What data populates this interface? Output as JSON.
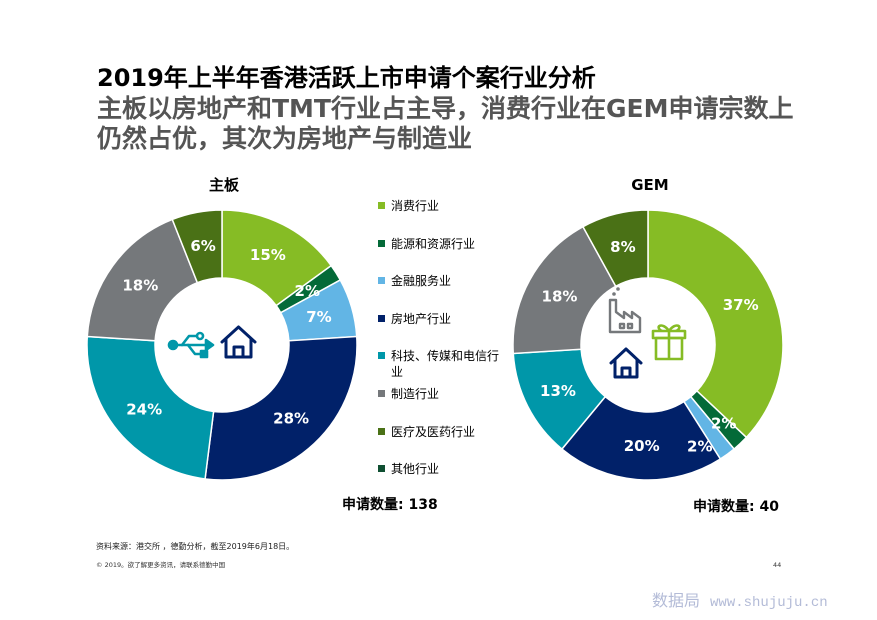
{
  "slide": {
    "title": "2019年上半年香港活跃上市申请个案行业分析",
    "subtitle_lines": [
      "主板以房地产和TMT行业占主导，消费行业在GEM申请宗数上",
      "仍然占优，其次为房地产与制造业"
    ],
    "source_note": "资料来源：港交所 ，德勤分析，截至2019年6月18日。",
    "copyright": "© 2019。欲了解更多资讯，请联系德勤中国",
    "page_number": "44"
  },
  "watermark": {
    "name": "数据局",
    "url": "www.shujuju.cn",
    "color": "#B3BBD7"
  },
  "legend": [
    {
      "label": "消费行业",
      "color": "#86BC25"
    },
    {
      "label": "能源和资源行业",
      "color": "#046A38"
    },
    {
      "label": "金融服务业",
      "color": "#62B5E5"
    },
    {
      "label": "房地产行业",
      "color": "#012169"
    },
    {
      "label": "科技、传媒和电信行业",
      "color": "#0097A9"
    },
    {
      "label": "制造行业",
      "color": "#75787B"
    },
    {
      "label": "医疗及医药行业",
      "color": "#4A7116"
    },
    {
      "label": "其他行业",
      "color": "#0F4F32"
    }
  ],
  "icons": {
    "main_board_center": [
      "usb-icon",
      "house-icon"
    ],
    "gem_center": [
      "factory-icon",
      "gift-icon",
      "house-icon"
    ]
  },
  "chart_data": [
    {
      "type": "pie",
      "style": "donut",
      "title": "主板",
      "categories": [
        "消费行业",
        "能源和资源行业",
        "金融服务业",
        "房地产行业",
        "科技、传媒和电信行业",
        "制造行业",
        "医疗及医药行业",
        "其他行业"
      ],
      "values": [
        15,
        2,
        7,
        28,
        24,
        18,
        6,
        0
      ],
      "unit": "%",
      "total_note": "申请数量: 138"
    },
    {
      "type": "pie",
      "style": "donut",
      "title": "GEM",
      "categories": [
        "消费行业",
        "能源和资源行业",
        "金融服务业",
        "房地产行业",
        "科技、传媒和电信行业",
        "制造行业",
        "医疗及医药行业",
        "其他行业"
      ],
      "values": [
        37,
        2,
        2,
        20,
        13,
        18,
        8,
        0
      ],
      "unit": "%",
      "total_note": "申请数量: 40"
    }
  ]
}
